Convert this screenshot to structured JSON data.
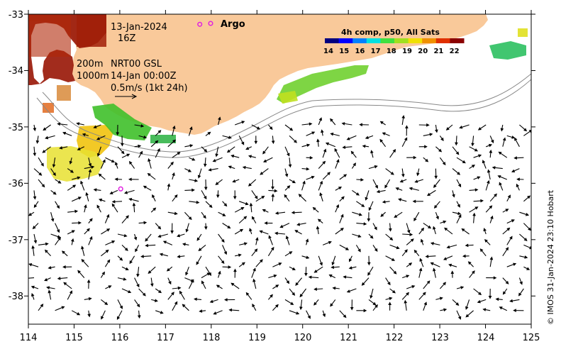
{
  "map": {
    "lon_range": [
      114,
      125
    ],
    "lat_range": [
      -38.5,
      -33
    ],
    "x_ticks": [
      "114",
      "115",
      "116",
      "117",
      "118",
      "119",
      "120",
      "121",
      "122",
      "123",
      "124",
      "125"
    ],
    "y_ticks": [
      "-33",
      "-34",
      "-35",
      "-36",
      "-37",
      "-38"
    ],
    "land_color": "#f9c99a",
    "frame_color": "#000000"
  },
  "annotations": {
    "date_line1": "13-Jan-2024",
    "date_line2": "16Z",
    "contour_200": "200m",
    "contour_1000": "1000m",
    "product": "NRT00 GSL",
    "product_time": "14-Jan 00:00Z",
    "scale_arrow": "0.5m/s (1kt 24h)"
  },
  "legend": {
    "argo_label": "Argo",
    "argo_color": "#e020e0",
    "colorbar_title": "4h comp, p50, All Sats",
    "colorbar_ticks": [
      "14",
      "15",
      "16",
      "17",
      "18",
      "19",
      "20",
      "21",
      "22"
    ],
    "colorbar_colors": [
      "#00007f",
      "#0000ff",
      "#0080ff",
      "#00e0e0",
      "#40e040",
      "#a0e020",
      "#f0e000",
      "#f09000",
      "#e03000",
      "#8b0000"
    ]
  },
  "argo_floats": [
    {
      "lon": 117.75,
      "lat": -33.18
    },
    {
      "lon": 116.02,
      "lat": -36.1
    }
  ],
  "credit": "© IMOS 31-Jan-2024 23:10 Hobart"
}
